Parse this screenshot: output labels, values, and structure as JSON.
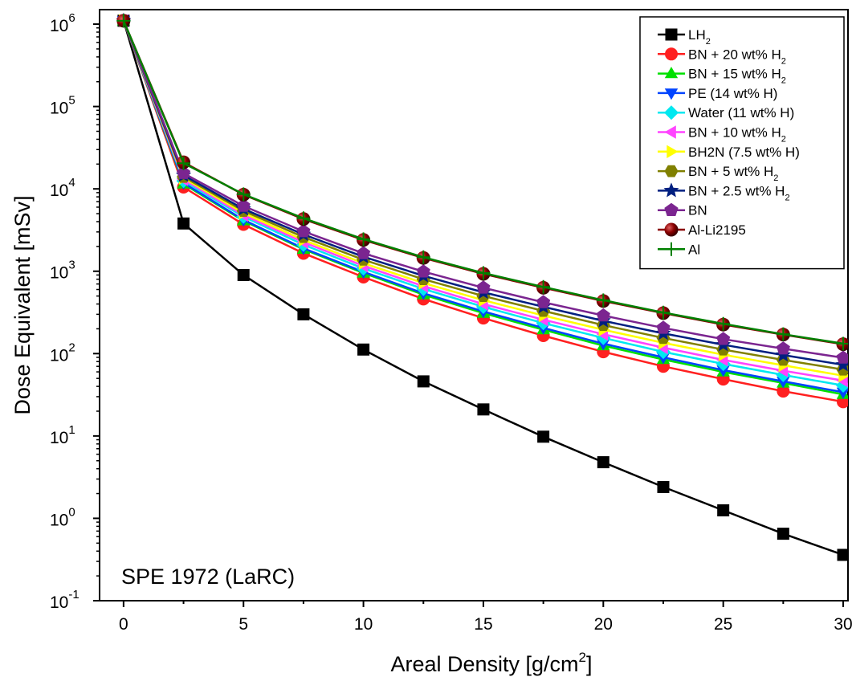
{
  "chart_data": {
    "type": "line",
    "title": "",
    "annotation": "SPE 1972 (LaRC)",
    "xlabel": {
      "main": "Areal Density [g/cm",
      "sup": "2",
      "tail": "]"
    },
    "ylabel": "Dose Equivalent [mSv]",
    "xlim": [
      -1,
      30.2
    ],
    "ylim": [
      0.1,
      1500000
    ],
    "yscale": "log",
    "x_ticks": [
      0,
      5,
      10,
      15,
      20,
      25,
      30
    ],
    "y_ticks": [
      {
        "value": 0.1,
        "label": "10",
        "exp": "-1"
      },
      {
        "value": 1,
        "label": "10",
        "exp": "0"
      },
      {
        "value": 10,
        "label": "10",
        "exp": "1"
      },
      {
        "value": 100,
        "label": "10",
        "exp": "2"
      },
      {
        "value": 1000,
        "label": "10",
        "exp": "3"
      },
      {
        "value": 10000,
        "label": "10",
        "exp": "4"
      },
      {
        "value": 100000,
        "label": "10",
        "exp": "5"
      },
      {
        "value": 1000000,
        "label": "10",
        "exp": "6"
      }
    ],
    "grid": false,
    "legend_position": "top-right",
    "x": [
      0,
      2.5,
      5,
      7.5,
      10,
      12.5,
      15,
      17.5,
      20,
      22.5,
      25,
      27.5,
      30
    ],
    "series": [
      {
        "name": "LH",
        "sub": "2",
        "tail": "",
        "color": "#000000",
        "marker": "square",
        "values": [
          1100000,
          3800,
          900,
          300,
          112,
          46,
          21,
          9.8,
          4.8,
          2.4,
          1.25,
          0.65,
          0.36
        ]
      },
      {
        "name": "BN + 20 wt% H",
        "sub": "2",
        "tail": "",
        "color": "#ff2020",
        "marker": "circle",
        "values": [
          1100000,
          10500,
          3700,
          1650,
          850,
          460,
          270,
          165,
          105,
          70,
          49,
          35,
          26
        ]
      },
      {
        "name": "BN + 15 wt% H",
        "sub": "2",
        "tail": "",
        "color": "#00e000",
        "marker": "triangle-up",
        "values": [
          1100000,
          11500,
          4100,
          1850,
          950,
          520,
          310,
          195,
          125,
          85,
          60,
          44,
          32
        ]
      },
      {
        "name": "PE (14 wt% H)",
        "sub": "",
        "tail": "",
        "color": "#0044ff",
        "marker": "triangle-down",
        "values": [
          1100000,
          11800,
          4200,
          1900,
          980,
          540,
          325,
          205,
          132,
          90,
          63,
          46,
          34
        ]
      },
      {
        "name": "Water (11 wt% H)",
        "sub": "",
        "tail": "",
        "color": "#00e8f0",
        "marker": "diamond",
        "values": [
          1100000,
          12500,
          4600,
          2100,
          1080,
          610,
          370,
          235,
          155,
          105,
          75,
          55,
          41
        ]
      },
      {
        "name": "BN + 10 wt% H",
        "sub": "2",
        "tail": "",
        "color": "#ff44ff",
        "marker": "triangle-left",
        "values": [
          1100000,
          13000,
          4800,
          2250,
          1160,
          660,
          400,
          258,
          172,
          118,
          84,
          62,
          47
        ]
      },
      {
        "name": "BH2N (7.5 wt% H)",
        "sub": "",
        "tail": "",
        "color": "#ffff00",
        "marker": "triangle-right",
        "values": [
          1100000,
          13500,
          5100,
          2400,
          1250,
          720,
          445,
          290,
          195,
          135,
          97,
          72,
          54
        ]
      },
      {
        "name": "BN + 5 wt% H",
        "sub": "2",
        "tail": "",
        "color": "#808000",
        "marker": "hexagon",
        "values": [
          1100000,
          14000,
          5400,
          2600,
          1380,
          800,
          500,
          330,
          222,
          155,
          112,
          84,
          64
        ]
      },
      {
        "name": "BN + 2.5 wt% H",
        "sub": "2",
        "tail": "",
        "color": "#001f80",
        "marker": "star",
        "values": [
          1100000,
          14600,
          5700,
          2800,
          1500,
          880,
          555,
          370,
          250,
          176,
          128,
          96,
          73
        ]
      },
      {
        "name": "BN",
        "sub": "",
        "tail": "",
        "color": "#7b2590",
        "marker": "pentagon",
        "values": [
          1100000,
          15500,
          6200,
          3050,
          1650,
          990,
          630,
          420,
          290,
          205,
          150,
          115,
          89
        ]
      },
      {
        "name": "Al-Li2195",
        "sub": "",
        "tail": "",
        "color": "#8b0000",
        "marker": "sphere",
        "values": [
          1100000,
          21000,
          8500,
          4300,
          2400,
          1450,
          930,
          630,
          435,
          310,
          225,
          170,
          130
        ]
      },
      {
        "name": "Al",
        "sub": "",
        "tail": "",
        "color": "#008000",
        "marker": "plus",
        "values": [
          1100000,
          20500,
          8600,
          4400,
          2450,
          1480,
          950,
          645,
          445,
          315,
          230,
          172,
          132
        ]
      }
    ]
  }
}
